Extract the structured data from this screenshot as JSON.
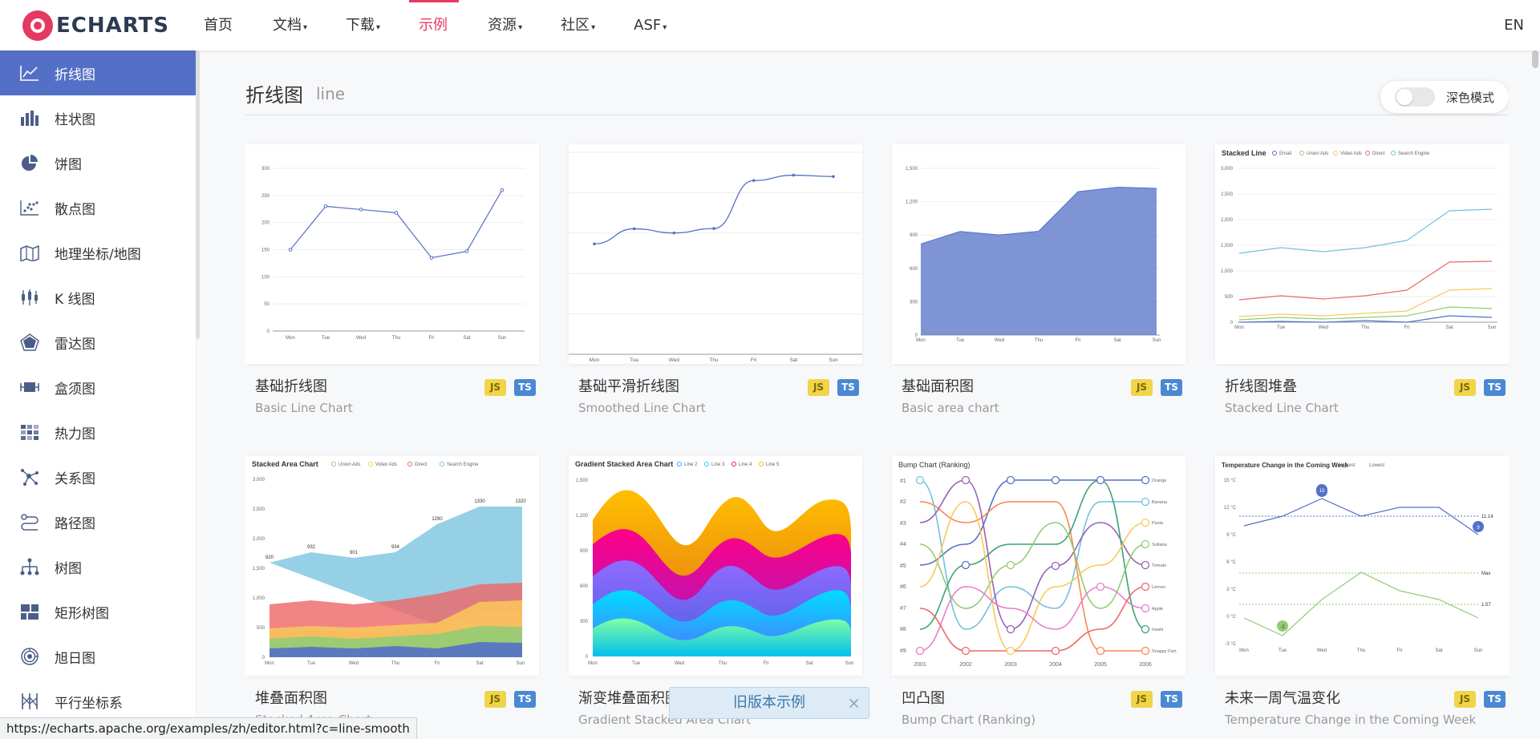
{
  "header": {
    "logo_text": "ECHARTS",
    "nav": [
      {
        "label": "首页",
        "caret": ""
      },
      {
        "label": "文档",
        "caret": "▾"
      },
      {
        "label": "下载",
        "caret": "▾"
      },
      {
        "label": "示例",
        "caret": ""
      },
      {
        "label": "资源",
        "caret": "▾"
      },
      {
        "label": "社区",
        "caret": "▾"
      },
      {
        "label": "ASF",
        "caret": "▾"
      }
    ],
    "active_nav": "示例",
    "lang": "EN",
    "accent_color": "#e43961"
  },
  "sidebar": {
    "active_color": "#5470c6",
    "items": [
      {
        "label": "折线图",
        "icon": "line-chart-icon"
      },
      {
        "label": "柱状图",
        "icon": "bar-chart-icon"
      },
      {
        "label": "饼图",
        "icon": "pie-chart-icon"
      },
      {
        "label": "散点图",
        "icon": "scatter-chart-icon"
      },
      {
        "label": "地理坐标/地图",
        "icon": "map-icon"
      },
      {
        "label": "K 线图",
        "icon": "candlestick-icon"
      },
      {
        "label": "雷达图",
        "icon": "radar-icon"
      },
      {
        "label": "盒须图",
        "icon": "boxplot-icon"
      },
      {
        "label": "热力图",
        "icon": "heatmap-icon"
      },
      {
        "label": "关系图",
        "icon": "graph-icon"
      },
      {
        "label": "路径图",
        "icon": "lines-icon"
      },
      {
        "label": "树图",
        "icon": "tree-icon"
      },
      {
        "label": "矩形树图",
        "icon": "treemap-icon"
      },
      {
        "label": "旭日图",
        "icon": "sunburst-icon"
      },
      {
        "label": "平行坐标系",
        "icon": "parallel-icon"
      }
    ]
  },
  "section": {
    "title": "折线图",
    "subtitle": "line",
    "dark_mode_label": "深色模式",
    "dark_mode_on": false
  },
  "cards": [
    {
      "title": "基础折线图",
      "subtitle": "Basic Line Chart",
      "js": "JS",
      "ts": "TS"
    },
    {
      "title": "基础平滑折线图",
      "subtitle": "Smoothed Line Chart",
      "js": "JS",
      "ts": "TS"
    },
    {
      "title": "基础面积图",
      "subtitle": "Basic area chart",
      "js": "JS",
      "ts": "TS"
    },
    {
      "title": "折线图堆叠",
      "subtitle": "Stacked Line Chart",
      "js": "JS",
      "ts": "TS"
    },
    {
      "title": "堆叠面积图",
      "subtitle": "Stacked Area Chart",
      "js": "JS",
      "ts": "TS"
    },
    {
      "title": "渐变堆叠面积图",
      "subtitle": "Gradient Stacked Area Chart",
      "js": "JS",
      "ts": "TS"
    },
    {
      "title": "凹凸图",
      "subtitle": "Bump Chart (Ranking)",
      "js": "JS",
      "ts": "TS"
    },
    {
      "title": "未来一周气温变化",
      "subtitle": "Temperature Change in the Coming Week",
      "js": "JS",
      "ts": "TS"
    }
  ],
  "thumbnails": {
    "basic_line": {
      "categories": [
        "Mon",
        "Tue",
        "Wed",
        "Thu",
        "Fri",
        "Sat",
        "Sun"
      ],
      "values": [
        150,
        230,
        224,
        218,
        135,
        147,
        260
      ],
      "yticks": [
        "300",
        "250",
        "200",
        "150",
        "100",
        "50",
        "0"
      ]
    },
    "smooth_line": {
      "categories": [
        "Mon",
        "Tue",
        "Wed",
        "Thu",
        "Fri",
        "Sat",
        "Sun"
      ],
      "values": [
        820,
        932,
        901,
        934,
        1290,
        1330,
        1320
      ]
    },
    "area": {
      "categories": [
        "Mon",
        "Tue",
        "Wed",
        "Thu",
        "Fri",
        "Sat",
        "Sun"
      ],
      "values": [
        820,
        932,
        901,
        934,
        1290,
        1330,
        1320
      ],
      "yticks": [
        "1,500",
        "1,200",
        "900",
        "600",
        "300",
        "0"
      ]
    },
    "stacked_line": {
      "title": "Stacked Line",
      "legend": [
        "Email",
        "Union Ads",
        "Video Ads",
        "Direct",
        "Search Engine"
      ],
      "yticks": [
        "3,000",
        "2,500",
        "2,000",
        "1,500",
        "1,000",
        "500",
        "0"
      ]
    },
    "stacked_area": {
      "title": "Stacked Area Chart",
      "legend": [
        "Union Ads",
        "Video Ads",
        "Direct",
        "Search Engine"
      ],
      "labels": [
        "820",
        "932",
        "901",
        "934",
        "1290",
        "1330",
        "1320"
      ],
      "yticks": [
        "3,000",
        "2,500",
        "2,000",
        "1,500",
        "1,000",
        "500",
        "0"
      ]
    },
    "gradient_area": {
      "title": "Gradient Stacked Area Chart",
      "legend": [
        "Line 2",
        "Line 3",
        "Line 4",
        "Line 5"
      ],
      "yticks": [
        "1,500",
        "1,200",
        "900",
        "600",
        "300",
        "0"
      ]
    },
    "bump": {
      "title": "Bump Chart (Ranking)",
      "ranks": [
        "#1",
        "#2",
        "#3",
        "#4",
        "#5",
        "#6",
        "#7",
        "#8",
        "#9"
      ],
      "years": [
        "2001",
        "2002",
        "2003",
        "2004",
        "2005",
        "2006"
      ],
      "names": [
        "Orange",
        "Banana",
        "Pasta",
        "Soltana",
        "Tomato",
        "Lemon",
        "Apple",
        "Ivashi",
        "Snappy Fish"
      ]
    },
    "temperature": {
      "title": "Temperature Change in the Coming Week",
      "legend": [
        "Highest",
        "Lowest"
      ],
      "yticks": [
        "15 °C",
        "12 °C",
        "9 °C",
        "6 °C",
        "3 °C",
        "0 °C",
        "-3 °C"
      ],
      "marks": [
        "13",
        "9",
        "-2",
        "11.14",
        "Max",
        "1.57"
      ]
    }
  },
  "banner": {
    "text": "旧版本示例",
    "close": "×"
  },
  "status_url": "https://echarts.apache.org/examples/zh/editor.html?c=line-smooth"
}
